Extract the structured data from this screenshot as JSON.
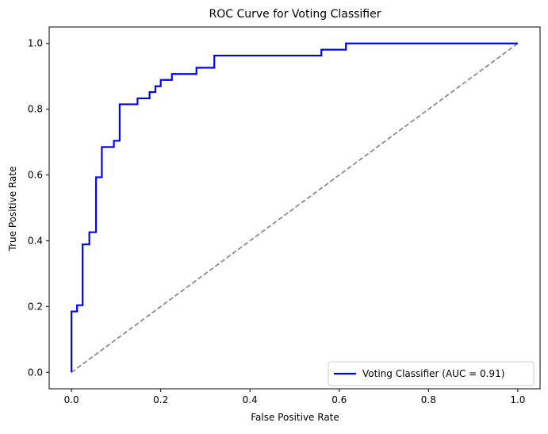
{
  "chart_data": {
    "type": "line",
    "title": "ROC Curve for Voting Classifier",
    "xlabel": "False Positive Rate",
    "ylabel": "True Positive Rate",
    "xlim": [
      -0.05,
      1.05
    ],
    "ylim": [
      -0.05,
      1.05
    ],
    "xticks": [
      0.0,
      0.2,
      0.4,
      0.6,
      0.8,
      1.0
    ],
    "yticks": [
      0.0,
      0.2,
      0.4,
      0.6,
      0.8,
      1.0
    ],
    "xtick_labels": [
      "0.0",
      "0.2",
      "0.4",
      "0.6",
      "0.8",
      "1.0"
    ],
    "ytick_labels": [
      "0.0",
      "0.2",
      "0.4",
      "0.6",
      "0.8",
      "1.0"
    ],
    "grid": false,
    "legend_position": "lower-right",
    "series": [
      {
        "name": "Voting Classifier (AUC = 0.91)",
        "color": "#0000ff",
        "style": "solid",
        "x": [
          0.0,
          0.0,
          0.0125,
          0.0125,
          0.025,
          0.025,
          0.04,
          0.04,
          0.055,
          0.055,
          0.068,
          0.068,
          0.095,
          0.095,
          0.108,
          0.108,
          0.148,
          0.148,
          0.175,
          0.175,
          0.188,
          0.188,
          0.2,
          0.2,
          0.225,
          0.225,
          0.28,
          0.28,
          0.32,
          0.32,
          0.56,
          0.56,
          0.615,
          0.615,
          1.0
        ],
        "y": [
          0.0,
          0.185,
          0.185,
          0.204,
          0.204,
          0.389,
          0.389,
          0.426,
          0.426,
          0.593,
          0.593,
          0.685,
          0.685,
          0.704,
          0.704,
          0.815,
          0.815,
          0.833,
          0.833,
          0.852,
          0.852,
          0.87,
          0.87,
          0.889,
          0.889,
          0.907,
          0.907,
          0.926,
          0.926,
          0.963,
          0.963,
          0.981,
          0.981,
          1.0,
          1.0
        ]
      },
      {
        "name": "",
        "color": "#808080",
        "style": "dashed",
        "x": [
          0.0,
          1.0
        ],
        "y": [
          0.0,
          1.0
        ]
      }
    ]
  }
}
